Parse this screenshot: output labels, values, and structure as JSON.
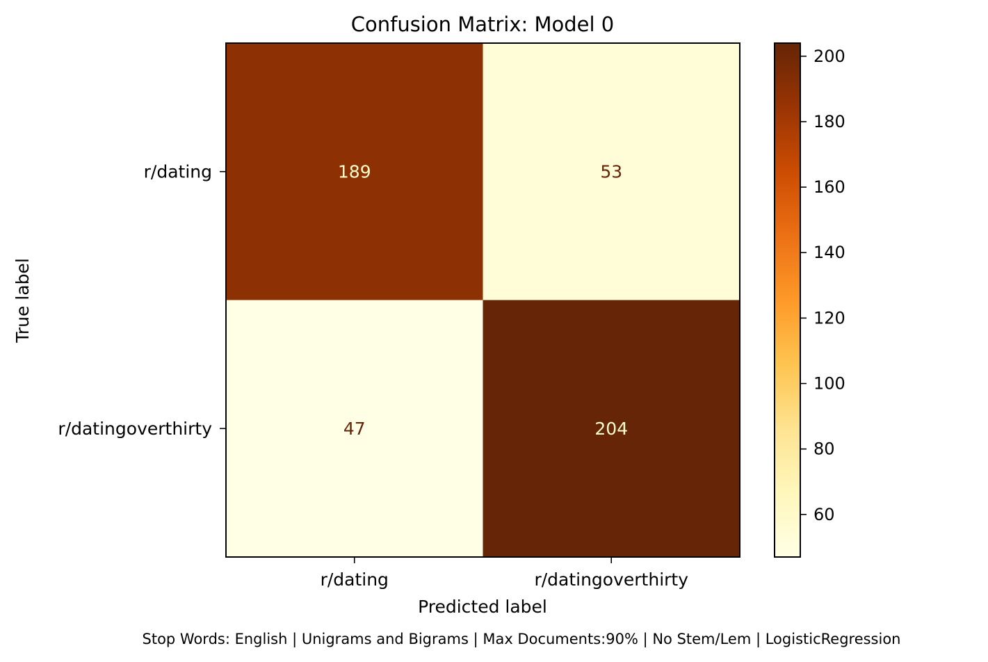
{
  "chart_data": {
    "type": "heatmap",
    "title": "Confusion Matrix: Model 0",
    "xlabel": "Predicted label",
    "ylabel": "True label",
    "x_categories": [
      "r/dating",
      "r/datingoverthirty"
    ],
    "y_categories": [
      "r/dating",
      "r/datingoverthirty"
    ],
    "matrix": [
      [
        189,
        53
      ],
      [
        47,
        204
      ]
    ],
    "colormap": "YlOrBr",
    "colorbar": {
      "min": 47,
      "max": 204,
      "ticks": [
        60,
        80,
        100,
        120,
        140,
        160,
        180,
        200
      ]
    },
    "text_colors": {
      "on_dark": "#ffffcc",
      "on_light": "#662506"
    },
    "footnote": "Stop Words: English | Unigrams and Bigrams | Max Documents:90% | No Stem/Lem | LogisticRegression"
  }
}
